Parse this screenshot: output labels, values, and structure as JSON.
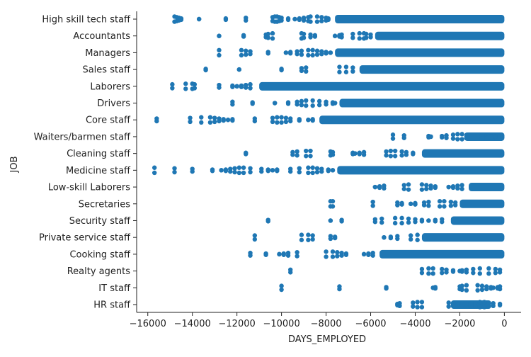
{
  "chart_data": {
    "type": "scatter",
    "title": "",
    "xlabel": "DAYS_EMPLOYED",
    "ylabel": "JOB",
    "xlim": [
      -16500,
      750
    ],
    "x_ticks": [
      -16000,
      -14000,
      -12000,
      -10000,
      -8000,
      -6000,
      -4000,
      -2000,
      0
    ],
    "x_tick_labels": [
      "−16000",
      "−14000",
      "−12000",
      "−10000",
      "−8000",
      "−6000",
      "−4000",
      "−2000",
      "0"
    ],
    "categories": [
      "High skill tech staff",
      "Accountants",
      "Managers",
      "Sales staff",
      "Laborers",
      "Drivers",
      "Core staff",
      "Waiters/barmen staff",
      "Cleaning staff",
      "Medicine staff",
      "Low-skill Laborers",
      "Secretaries",
      "Security staff",
      "Private service staff",
      "Cooking staff",
      "Realty agents",
      "IT staff",
      "HR staff"
    ],
    "series_color": "#1f77b4",
    "grid": false,
    "strip": [
      {
        "job": "High skill tech staff",
        "dense": [
          -7600,
          0
        ],
        "points": [
          -14800,
          -14700,
          -14600,
          -14500,
          -13700,
          -12500,
          -11600,
          -10400,
          -10300,
          -10200,
          -10100,
          -10000,
          -9700,
          -9400,
          -9200,
          -9000,
          -8800,
          -8700,
          -8400,
          -8200,
          -8000,
          -7900
        ]
      },
      {
        "job": "Accountants",
        "dense": [
          -5800,
          0
        ],
        "points": [
          -12800,
          -11700,
          -10700,
          -10600,
          -10400,
          -9100,
          -9000,
          -8700,
          -8500,
          -7600,
          -7400,
          -7300,
          -6800,
          -6500,
          -6300,
          -6200,
          -6000
        ]
      },
      {
        "job": "Managers",
        "dense": [
          -7600,
          0
        ],
        "points": [
          -12800,
          -11800,
          -11600,
          -11400,
          -10600,
          -9800,
          -9600,
          -9300,
          -9100,
          -8800,
          -8600,
          -8400,
          -8200,
          -8000,
          -7800
        ]
      },
      {
        "job": "Sales staff",
        "dense": [
          -6500,
          0
        ],
        "points": [
          -13400,
          -11900,
          -10000,
          -9100,
          -8900,
          -7400,
          -7100,
          -6800
        ]
      },
      {
        "job": "Laborers",
        "dense": [
          -11000,
          0
        ],
        "points": [
          -14900,
          -14300,
          -14000,
          -13900,
          -12800,
          -12200,
          -12000,
          -11800,
          -11600,
          -11400
        ]
      },
      {
        "job": "Drivers",
        "dense": [
          -7400,
          0
        ],
        "points": [
          -12200,
          -11300,
          -10300,
          -9700,
          -9300,
          -9100,
          -8900,
          -8600,
          -8300,
          -8000,
          -7700,
          -7600
        ]
      },
      {
        "job": "Core staff",
        "dense": [
          -8300,
          0
        ],
        "points": [
          -15600,
          -14100,
          -13600,
          -13200,
          -13000,
          -12800,
          -12600,
          -12400,
          -12200,
          -11200,
          -10400,
          -10200,
          -10000,
          -9800,
          -9600,
          -9200,
          -8800,
          -8600
        ]
      },
      {
        "job": "Waiters/barmen staff",
        "dense": [
          -1800,
          0
        ],
        "points": [
          -5000,
          -4500,
          -3400,
          -3300,
          -2800,
          -2600,
          -2300,
          -2100,
          -1900,
          -1000,
          -800,
          -600,
          -400,
          -100
        ]
      },
      {
        "job": "Cleaning staff",
        "dense": [
          -3700,
          0
        ],
        "points": [
          -11600,
          -9500,
          -9300,
          -8900,
          -8700,
          -7800,
          -7700,
          -6800,
          -6700,
          -6500,
          -6300,
          -5300,
          -5100,
          -4900,
          -4600,
          -4400,
          -4100
        ]
      },
      {
        "job": "Medicine staff",
        "dense": [
          -7500,
          0
        ],
        "points": [
          -15700,
          -14800,
          -14000,
          -13100,
          -12700,
          -12500,
          -12300,
          -12100,
          -11900,
          -11700,
          -11400,
          -10900,
          -10600,
          -10400,
          -10200,
          -9600,
          -9200,
          -8800,
          -8600,
          -8400,
          -8200,
          -7900,
          -7700
        ]
      },
      {
        "job": "Low-skill Laborers",
        "dense": [
          -1600,
          0
        ],
        "points": [
          -5800,
          -5600,
          -5400,
          -4500,
          -4300,
          -3700,
          -3500,
          -3300,
          -3100,
          -2500,
          -2300,
          -2100,
          -1900
        ]
      },
      {
        "job": "Secretaries",
        "dense": [
          -2000,
          0
        ],
        "points": [
          -7800,
          -7700,
          -5900,
          -4800,
          -4600,
          -4200,
          -4000,
          -3600,
          -3400,
          -2900,
          -2700,
          -2400,
          -2200
        ]
      },
      {
        "job": "Security staff",
        "dense": [
          -2400,
          0
        ],
        "points": [
          -10600,
          -7800,
          -7300,
          -5800,
          -5500,
          -4900,
          -4600,
          -4300,
          -4000,
          -3700,
          -3400,
          -3100,
          -2800
        ]
      },
      {
        "job": "Private service staff",
        "dense": [
          -3700,
          0
        ],
        "points": [
          -11200,
          -9100,
          -8800,
          -8600,
          -7800,
          -7600,
          -5400,
          -5100,
          -4800,
          -4200,
          -3900
        ]
      },
      {
        "job": "Cooking staff",
        "dense": [
          -5600,
          0
        ],
        "points": [
          -11400,
          -10700,
          -10100,
          -9900,
          -9700,
          -9300,
          -8000,
          -7700,
          -7500,
          -7300,
          -7100,
          -6300,
          -6100,
          -5900
        ]
      },
      {
        "job": "Realty agents",
        "dense": [],
        "points": [
          -9600,
          -3700,
          -3400,
          -3200,
          -2800,
          -2600,
          -2300,
          -2000,
          -1900,
          -1700,
          -1400,
          -1100,
          -700,
          -400,
          -200
        ]
      },
      {
        "job": "IT staff",
        "dense": [],
        "points": [
          -10000,
          -7400,
          -5300,
          -3200,
          -3100,
          -2000,
          -1900,
          -1700,
          -1200,
          -1000,
          -800,
          -600,
          -500,
          -300,
          -200
        ]
      },
      {
        "job": "HR staff",
        "dense": [
          -2400,
          -600
        ],
        "points": [
          -4800,
          -4700,
          -4100,
          -3900,
          -3700,
          -2500,
          -2300,
          -2100,
          -1900,
          -1700,
          -1500,
          -1300,
          -1100,
          -900,
          -700,
          -500,
          -200
        ]
      }
    ]
  }
}
